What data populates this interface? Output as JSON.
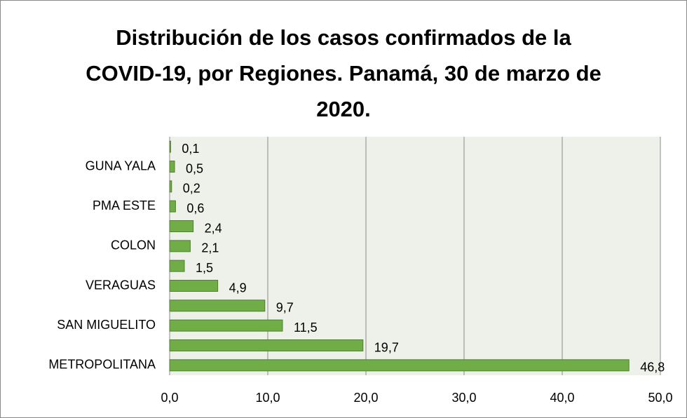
{
  "chart_data": {
    "type": "bar",
    "orientation": "horizontal",
    "title": "Distribución de los casos confirmados de la COVID-19, por Regiones. Panamá, 30 de marzo de 2020.",
    "categories": [
      null,
      "GUNA YALA",
      null,
      "PMA ESTE",
      null,
      "COLON",
      null,
      "VERAGUAS",
      null,
      "SAN MIGUELITO",
      null,
      "METROPOLITANA"
    ],
    "values": [
      0.1,
      0.5,
      0.2,
      0.6,
      2.4,
      2.1,
      1.5,
      4.9,
      9.7,
      11.5,
      19.7,
      46.8
    ],
    "value_labels": [
      "0,1",
      "0,5",
      "0,2",
      "0,6",
      "2,4",
      "2,1",
      "1,5",
      "4,9",
      "9,7",
      "11,5",
      "19,7",
      "46,8"
    ],
    "color": "#70ad47",
    "xlim": [
      0,
      50
    ],
    "xticks": [
      {
        "value": 0,
        "label": "0,0"
      },
      {
        "value": 10,
        "label": "10,0"
      },
      {
        "value": 20,
        "label": "20,0"
      },
      {
        "value": 30,
        "label": "30,0"
      },
      {
        "value": 40,
        "label": "40,0"
      },
      {
        "value": 50,
        "label": "50,0"
      }
    ],
    "grid": true
  }
}
